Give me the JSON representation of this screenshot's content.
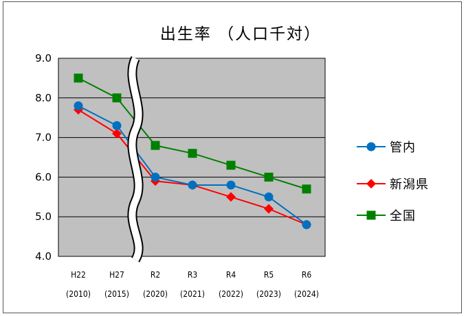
{
  "chart_data": {
    "type": "line",
    "title": "出生率 （人口千対）",
    "categories": [
      "H22",
      "H27",
      "R2",
      "R3",
      "R4",
      "R5",
      "R6"
    ],
    "category_years": [
      "(2010)",
      "(2015)",
      "(2020)",
      "(2021)",
      "(2022)",
      "(2023)",
      "(2024)"
    ],
    "ylim": [
      4.0,
      9.0
    ],
    "yticks": [
      "9.0",
      "8.0",
      "7.0",
      "6.0",
      "5.0",
      "4.0"
    ],
    "grid": true,
    "axis_break": "between H27 and R2",
    "legend_position": "right",
    "plot_background": "#c0c0c0",
    "series": [
      {
        "name": "管内",
        "color": "#0070c0",
        "marker": "circle",
        "values": [
          7.8,
          7.3,
          6.0,
          5.8,
          5.8,
          5.5,
          4.8
        ]
      },
      {
        "name": "新潟県",
        "color": "#ff0000",
        "marker": "diamond",
        "values": [
          7.7,
          7.1,
          5.9,
          5.8,
          5.5,
          5.2,
          4.8
        ]
      },
      {
        "name": "全国",
        "color": "#008000",
        "marker": "square",
        "values": [
          8.5,
          8.0,
          6.8,
          6.6,
          6.3,
          6.0,
          5.7
        ]
      }
    ]
  }
}
